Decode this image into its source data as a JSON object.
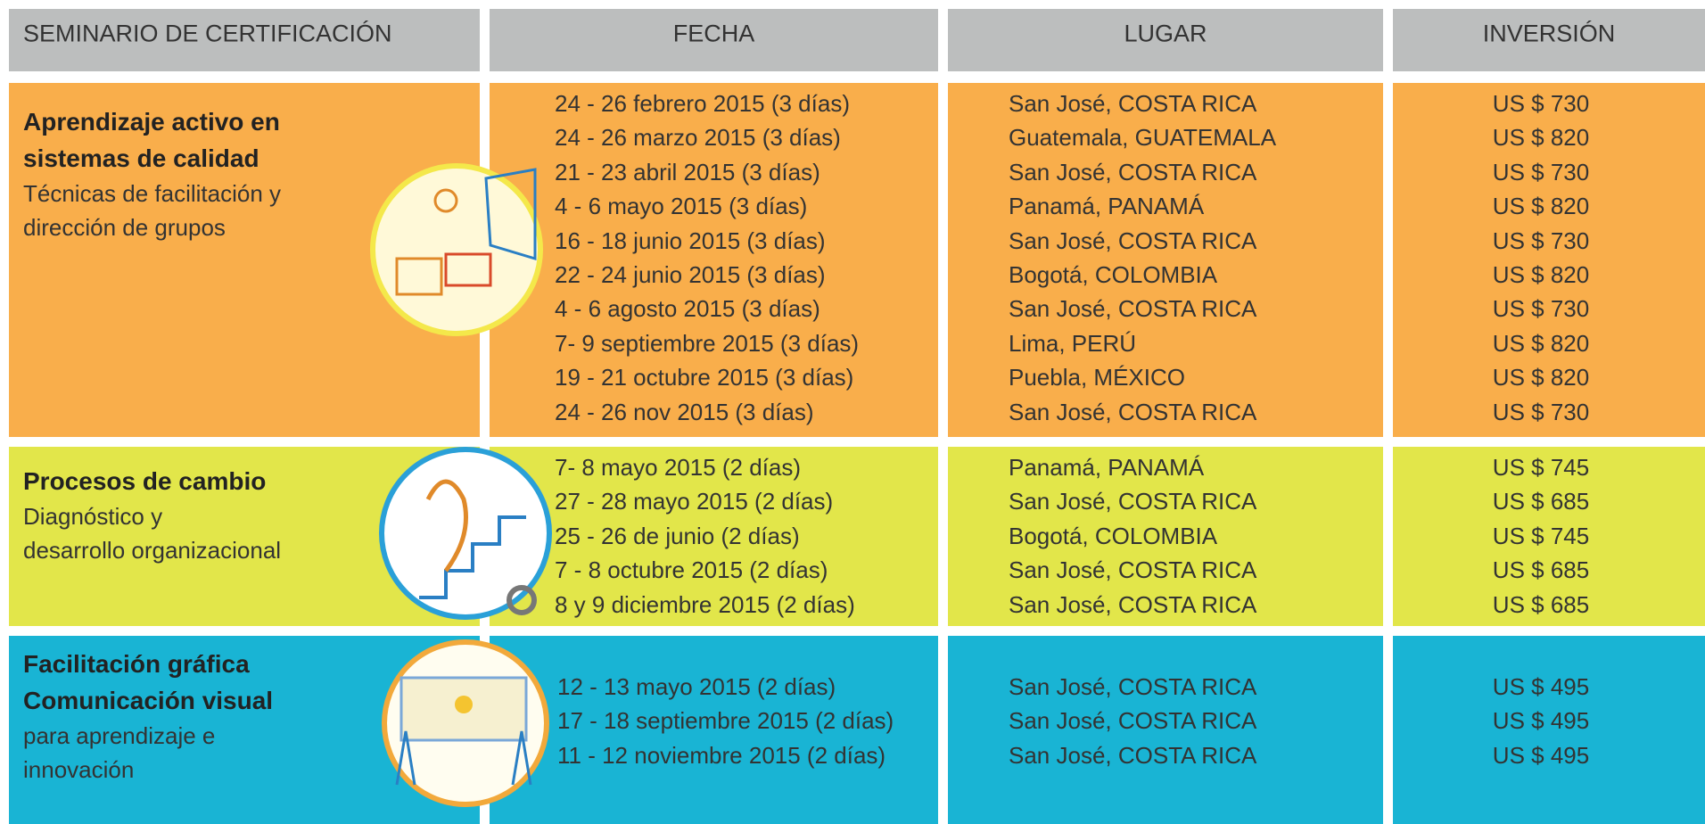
{
  "header": [
    "SEMINARIO DE CERTIFICACIÓN",
    "FECHA",
    "LUGAR",
    "INVERSIÓN"
  ],
  "sections": [
    {
      "title_lines": [
        "Aprendizaje activo en",
        "sistemas de calidad"
      ],
      "description_lines": [
        "Técnicas de facilitación y",
        "dirección de grupos"
      ],
      "rows": [
        [
          "24 - 26 febrero 2015 (3 días)",
          "San José, COSTA RICA",
          "US $ 730"
        ],
        [
          "24 - 26 marzo 2015 (3 días)",
          "Guatemala, GUATEMALA",
          "US $ 820"
        ],
        [
          "21 - 23 abril 2015 (3 días)",
          "San José, COSTA RICA",
          "US $ 730"
        ],
        [
          "4 - 6 mayo 2015 (3 días)",
          "Panamá, PANAMÁ",
          "US $ 820"
        ],
        [
          "16 - 18 junio 2015 (3 días)",
          "San José, COSTA RICA",
          "US $ 730"
        ],
        [
          "22 - 24 junio 2015 (3 días)",
          "Bogotá, COLOMBIA",
          "US $ 820"
        ],
        [
          "4 - 6 agosto 2015 (3 días)",
          "San José, COSTA RICA",
          "US $ 730"
        ],
        [
          "7- 9 septiembre 2015 (3 días)",
          "Lima, PERÚ",
          "US $ 820"
        ],
        [
          "19 - 21 octubre 2015 (3 días)",
          "Puebla, MÉXICO",
          "US $ 820"
        ],
        [
          "24 - 26 nov 2015 (3 días)",
          "San José, COSTA RICA",
          "US $ 730"
        ]
      ]
    },
    {
      "title_lines": [
        "Procesos de cambio"
      ],
      "description_lines": [
        "Diagnóstico y",
        "desarrollo organizacional"
      ],
      "rows": [
        [
          "7- 8 mayo 2015 (2 días)",
          "Panamá, PANAMÁ",
          "US $ 745"
        ],
        [
          "27 - 28 mayo 2015 (2 días)",
          "San José, COSTA RICA",
          "US $ 685"
        ],
        [
          "25 - 26 de junio (2 días)",
          "Bogotá, COLOMBIA",
          "US $ 745"
        ],
        [
          "7 - 8 octubre 2015 (2 días)",
          "San José, COSTA RICA",
          "US $ 685"
        ],
        [
          "8 y 9 diciembre 2015 (2 días)",
          "San José, COSTA RICA",
          "US $ 685"
        ]
      ]
    },
    {
      "title_lines": [
        "Facilitación gráfica",
        "Comunicación visual"
      ],
      "description_lines": [
        "para aprendizaje e",
        "innovación"
      ],
      "rows": [
        [
          "12 - 13 mayo 2015 (2 días)",
          "San José, COSTA RICA",
          "US $ 495"
        ],
        [
          "17 - 18 septiembre 2015 (2 días)",
          "San José, COSTA RICA",
          "US $ 495"
        ],
        [
          "11 - 12 noviembre 2015 (2 días)",
          "San José, COSTA RICA",
          "US $ 495"
        ]
      ]
    }
  ]
}
